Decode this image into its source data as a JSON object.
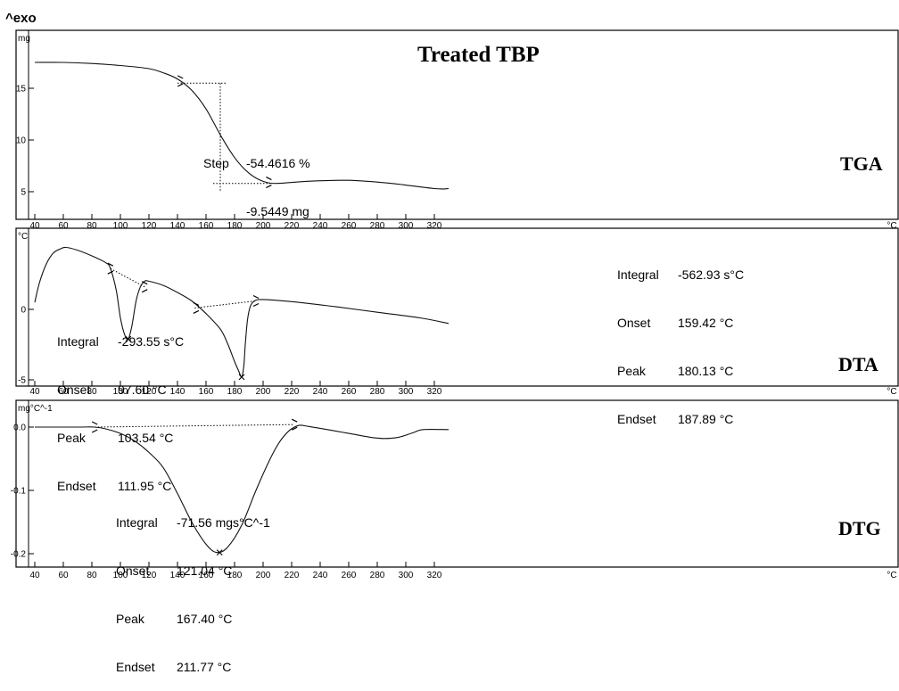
{
  "exo_label": "^exo",
  "title": "Treated TBP",
  "x_unit": "°C",
  "x_ticks": [
    40,
    60,
    80,
    100,
    120,
    140,
    160,
    180,
    200,
    220,
    240,
    260,
    280,
    300,
    320
  ],
  "panels": {
    "tga": {
      "label": "TGA",
      "unit": "mg",
      "step": {
        "label": "Step",
        "percent": "-54.4616 %",
        "mass": "-9.5449 mg"
      }
    },
    "dta": {
      "label": "DTA",
      "unit": "°C",
      "peak1": {
        "integral": "-293.55 s°C",
        "onset": "97.60 °C",
        "peak": "103.54 °C",
        "endset": "111.95 °C"
      },
      "peak2": {
        "integral": "-562.93 s°C",
        "onset": "159.42 °C",
        "peak": "180.13 °C",
        "endset": "187.89 °C"
      }
    },
    "dtg": {
      "label": "DTG",
      "unit": "mg°C^-1",
      "peak1": {
        "integral": "-71.56 mgs°C^-1",
        "onset": "121.04 °C",
        "peak": "167.40 °C",
        "endset": "211.77 °C"
      }
    }
  },
  "labels": {
    "integral": "Integral",
    "onset": "Onset",
    "peak": "Peak",
    "endset": "Endset"
  },
  "chart_data": [
    {
      "type": "line",
      "title": "Treated TBP",
      "name": "TGA",
      "xlabel": "°C",
      "ylabel": "mg",
      "xlim": [
        40,
        330
      ],
      "ylim": [
        3,
        18.5
      ],
      "yticks": [
        5,
        10,
        15
      ],
      "x": [
        40,
        60,
        80,
        100,
        120,
        130,
        140,
        150,
        160,
        170,
        180,
        190,
        200,
        210,
        230,
        260,
        290,
        320,
        330
      ],
      "y": [
        17.5,
        17.5,
        17.4,
        17.2,
        16.9,
        16.5,
        15.9,
        14.8,
        13.0,
        10.5,
        8.3,
        6.8,
        6.0,
        5.8,
        6.0,
        6.1,
        5.8,
        5.3,
        5.3
      ]
    },
    {
      "type": "line",
      "name": "DTA",
      "xlabel": "°C",
      "ylabel": "°C",
      "xlim": [
        40,
        330
      ],
      "ylim": [
        -5.5,
        5
      ],
      "yticks": [
        -5,
        0
      ],
      "x": [
        40,
        43,
        48,
        53,
        58,
        62,
        70,
        80,
        90,
        93,
        97,
        100,
        103,
        105.5,
        108,
        111,
        114,
        117,
        120,
        130,
        140,
        150,
        160,
        170,
        175,
        180,
        183,
        185,
        186.5,
        187.5,
        189,
        191,
        194,
        200,
        220,
        250,
        280,
        310,
        330
      ],
      "y": [
        0.5,
        1.8,
        3.2,
        4.0,
        4.3,
        4.4,
        4.2,
        3.8,
        3.3,
        2.9,
        1.4,
        -0.6,
        -1.8,
        -2.1,
        -1.2,
        0.6,
        1.6,
        2.0,
        2.0,
        1.7,
        1.2,
        0.6,
        -0.3,
        -1.4,
        -2.4,
        -3.7,
        -4.4,
        -4.8,
        -4.0,
        -2.5,
        -0.8,
        0.2,
        0.6,
        0.7,
        0.55,
        0.2,
        -0.2,
        -0.6,
        -1.0
      ]
    },
    {
      "type": "line",
      "name": "DTG",
      "xlabel": "°C",
      "ylabel": "mg°C^-1",
      "xlim": [
        40,
        330
      ],
      "ylim": [
        -0.21,
        0.015
      ],
      "yticks": [
        -0.2,
        -0.1,
        0.0
      ],
      "x": [
        40,
        70,
        82,
        90,
        100,
        110,
        120,
        130,
        140,
        150,
        160,
        167.4,
        175,
        185,
        195,
        205,
        212,
        218,
        222,
        226,
        232,
        245,
        260,
        275,
        285,
        295,
        305,
        312,
        330
      ],
      "y": [
        0.0,
        0.0,
        0.0,
        -0.003,
        -0.01,
        -0.022,
        -0.04,
        -0.064,
        -0.105,
        -0.15,
        -0.185,
        -0.198,
        -0.19,
        -0.155,
        -0.1,
        -0.05,
        -0.022,
        -0.006,
        0.0,
        0.003,
        0.001,
        -0.004,
        -0.01,
        -0.016,
        -0.018,
        -0.016,
        -0.009,
        -0.004,
        -0.004
      ]
    }
  ]
}
